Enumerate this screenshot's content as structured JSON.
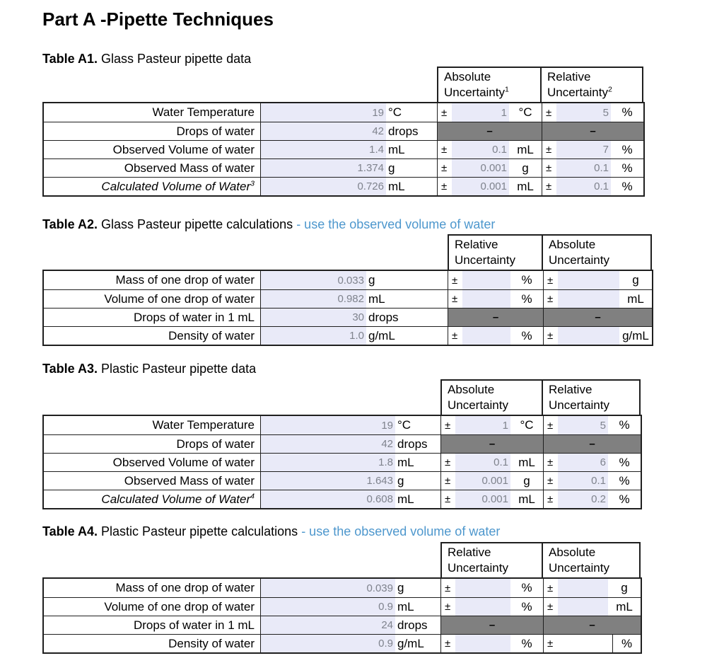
{
  "page": {
    "title": "Part A -Pipette Techniques"
  },
  "symbols": {
    "plus_minus": "±",
    "dash": "–"
  },
  "colors": {
    "accent_blue": "#4d97cd",
    "field_shade": "#e9eaf8",
    "na_gray": "#808080",
    "value_gray": "#7f838d"
  },
  "tables": [
    {
      "name": "A1",
      "title": {
        "bold": "Table A1.",
        "text": " Glass Pasteur pipette data",
        "note": ""
      },
      "headers": [
        {
          "line1": "Absolute",
          "line2": "Uncertainty",
          "sup": "1"
        },
        {
          "line1": "Relative",
          "line2": "Uncertainty",
          "sup": "2"
        }
      ],
      "rows": [
        {
          "label": "Water Temperature",
          "italic": false,
          "sup": "",
          "value": "19",
          "unit": "°C",
          "unc1": {
            "type": "field",
            "value": "1",
            "unit": "°C"
          },
          "unc2": {
            "type": "field",
            "value": "5",
            "unit": "%"
          }
        },
        {
          "label": "Drops of water",
          "italic": false,
          "sup": "",
          "value": "42",
          "unit": "drops",
          "unc1": {
            "type": "dash"
          },
          "unc2": {
            "type": "dash"
          }
        },
        {
          "label": "Observed Volume of water",
          "italic": false,
          "sup": "",
          "value": "1.4",
          "unit": "mL",
          "unc1": {
            "type": "field",
            "value": "0.1",
            "unit": "mL"
          },
          "unc2": {
            "type": "field",
            "value": "7",
            "unit": "%"
          }
        },
        {
          "label": "Observed Mass of water",
          "italic": false,
          "sup": "",
          "value": "1.374",
          "unit": "g",
          "unc1": {
            "type": "field",
            "value": "0.001",
            "unit": "g"
          },
          "unc2": {
            "type": "field",
            "value": "0.1",
            "unit": "%"
          }
        },
        {
          "label": "Calculated Volume of Water",
          "italic": true,
          "sup": "3",
          "value": "0.726",
          "unit": "mL",
          "unc1": {
            "type": "field",
            "value": "0.001",
            "unit": "mL"
          },
          "unc2": {
            "type": "field",
            "value": "0.1",
            "unit": "%"
          }
        }
      ]
    },
    {
      "name": "A2",
      "title": {
        "bold": "Table A2.",
        "text": " Glass Pasteur pipette calculations ",
        "note": "- use the observed volume of water"
      },
      "headers": [
        {
          "line1": "Relative",
          "line2": "Uncertainty",
          "sup": ""
        },
        {
          "line1": "Absolute",
          "line2": "Uncertainty",
          "sup": ""
        }
      ],
      "rows": [
        {
          "label": "Mass of one drop of water",
          "italic": false,
          "sup": "",
          "value": "0.033",
          "unit": "g",
          "unc1": {
            "type": "field",
            "value": "",
            "unit": "%"
          },
          "unc2": {
            "type": "field",
            "value": "",
            "unit": "g"
          }
        },
        {
          "label": "Volume of one drop of water",
          "italic": false,
          "sup": "",
          "value": "0.982",
          "unit": "mL",
          "unc1": {
            "type": "field",
            "value": "",
            "unit": "%"
          },
          "unc2": {
            "type": "field",
            "value": "",
            "unit": "mL"
          }
        },
        {
          "label": "Drops of water in 1 mL",
          "italic": false,
          "sup": "",
          "value": "30",
          "unit": "drops",
          "unc1": {
            "type": "dash"
          },
          "unc2": {
            "type": "dash"
          }
        },
        {
          "label": "Density of water",
          "italic": false,
          "sup": "",
          "value": "1.0",
          "unit": "g/mL",
          "unc1": {
            "type": "field",
            "value": "",
            "unit": "%"
          },
          "unc2": {
            "type": "field",
            "value": "",
            "unit": "g/mL"
          }
        }
      ]
    },
    {
      "name": "A3",
      "title": {
        "bold": "Table A3.",
        "text": " Plastic Pasteur pipette data",
        "note": ""
      },
      "headers": [
        {
          "line1": "Absolute",
          "line2": "Uncertainty",
          "sup": ""
        },
        {
          "line1": "Relative",
          "line2": "Uncertainty",
          "sup": ""
        }
      ],
      "rows": [
        {
          "label": "Water Temperature",
          "italic": false,
          "sup": "",
          "value": "19",
          "unit": "°C",
          "unc1": {
            "type": "field",
            "value": "1",
            "unit": "°C"
          },
          "unc2": {
            "type": "field",
            "value": "5",
            "unit": "%"
          }
        },
        {
          "label": "Drops of water",
          "italic": false,
          "sup": "",
          "value": "42",
          "unit": "drops",
          "unc1": {
            "type": "dash"
          },
          "unc2": {
            "type": "dash"
          }
        },
        {
          "label": "Observed Volume of water",
          "italic": false,
          "sup": "",
          "value": "1.8",
          "unit": "mL",
          "unc1": {
            "type": "field",
            "value": "0.1",
            "unit": "mL"
          },
          "unc2": {
            "type": "field",
            "value": "6",
            "unit": "%"
          }
        },
        {
          "label": "Observed Mass of water",
          "italic": false,
          "sup": "",
          "value": "1.643",
          "unit": "g",
          "unc1": {
            "type": "field",
            "value": "0.001",
            "unit": "g"
          },
          "unc2": {
            "type": "field",
            "value": "0.1",
            "unit": "%"
          }
        },
        {
          "label": "Calculated Volume of Water",
          "italic": true,
          "sup": "4",
          "value": "0.608",
          "unit": "mL",
          "unc1": {
            "type": "field",
            "value": "0.001",
            "unit": "mL"
          },
          "unc2": {
            "type": "field",
            "value": "0.2",
            "unit": "%"
          }
        }
      ]
    },
    {
      "name": "A4",
      "title": {
        "bold": "Table A4.",
        "text": " Plastic Pasteur pipette calculations ",
        "note": "- use the observed volume of water"
      },
      "headers": [
        {
          "line1": "Relative",
          "line2": "Uncertainty",
          "sup": ""
        },
        {
          "line1": "Absolute",
          "line2": "Uncertainty",
          "sup": ""
        }
      ],
      "rows": [
        {
          "label": "Mass of one drop of water",
          "italic": false,
          "sup": "",
          "value": "0.039",
          "unit": "g",
          "unc1": {
            "type": "field",
            "value": "",
            "unit": "%"
          },
          "unc2": {
            "type": "field",
            "value": "",
            "unit": "g"
          }
        },
        {
          "label": "Volume of one drop of water",
          "italic": false,
          "sup": "",
          "value": "0.9",
          "unit": "mL",
          "unc1": {
            "type": "field",
            "value": "",
            "unit": "%"
          },
          "unc2": {
            "type": "field",
            "value": "",
            "unit": "mL"
          }
        },
        {
          "label": "Drops of water in 1 mL",
          "italic": false,
          "sup": "",
          "value": "24",
          "unit": "drops",
          "unc1": {
            "type": "dash"
          },
          "unc2": {
            "type": "dash"
          }
        },
        {
          "label": "Density of water",
          "italic": false,
          "sup": "",
          "value": "0.9",
          "unit": "g/mL",
          "unc1": {
            "type": "field",
            "value": "",
            "unit": "%"
          },
          "unc2": {
            "type": "plain",
            "value": "",
            "unit": "%"
          }
        }
      ]
    }
  ]
}
